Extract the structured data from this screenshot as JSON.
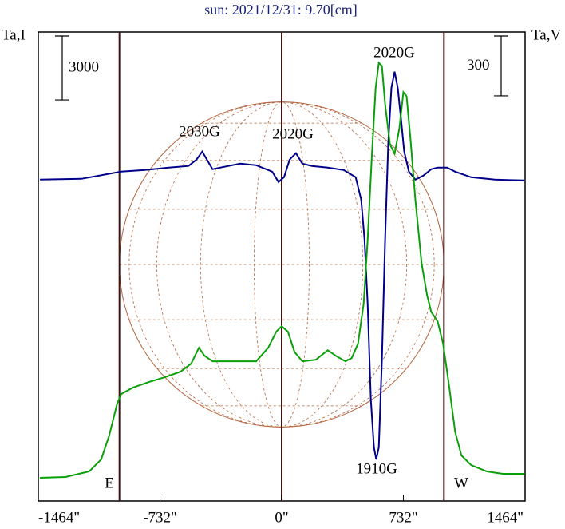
{
  "chart_data": {
    "type": "line",
    "title": "sun: 2021/12/31: 9.70[cm]",
    "y_label": "Ta,I",
    "y2_label": "Ta,V",
    "xlim": [
      -1464,
      1464
    ],
    "xticks": [
      {
        "value": -1464,
        "label": "-1464\""
      },
      {
        "value": -732,
        "label": "-732\""
      },
      {
        "value": 0,
        "label": "0\""
      },
      {
        "value": 732,
        "label": "732\""
      },
      {
        "value": 1464,
        "label": "1464\""
      }
    ],
    "ylim": [
      0,
      22000
    ],
    "y2lim": [
      0,
      2350
    ],
    "y_scale": 3000,
    "y2_scale": 300,
    "vlines": [
      -976,
      0,
      976
    ],
    "annotations": [
      "2030G",
      "2020G",
      "2020G",
      "1910G",
      "E",
      "W"
    ],
    "series": [
      {
        "color": "#00008b",
        "axis": "y",
        "x": [
          -1454,
          -1206,
          -966,
          -823,
          -679,
          -560,
          -512,
          -478,
          -450,
          -416,
          -368,
          -249,
          -153,
          -57,
          -19,
          14,
          48,
          86,
          124,
          182,
          277,
          373,
          445,
          478,
          498,
          517,
          536,
          555,
          569,
          584,
          603,
          622,
          641,
          660,
          679,
          698,
          718,
          737,
          765,
          804,
          852,
          899,
          938,
          995,
          1043,
          1139,
          1282,
          1459
        ],
        "values": [
          15075,
          15113,
          15450,
          15525,
          15638,
          15713,
          16013,
          16388,
          16013,
          15563,
          15638,
          15825,
          15750,
          15450,
          14963,
          15188,
          16013,
          16313,
          15825,
          15713,
          15638,
          15525,
          15188,
          14138,
          12263,
          9263,
          4763,
          2513,
          1950,
          2513,
          6638,
          12263,
          16763,
          19388,
          20138,
          19388,
          17888,
          16388,
          15450,
          15075,
          15263,
          15563,
          15638,
          15638,
          15450,
          15188,
          15075,
          15038
        ]
      },
      {
        "color": "#0aa00a",
        "axis": "y2",
        "x": [
          -1454,
          -1301,
          -1158,
          -1086,
          -1038,
          -990,
          -966,
          -895,
          -799,
          -703,
          -608,
          -545,
          -498,
          -464,
          -416,
          -297,
          -153,
          -81,
          -33,
          0,
          38,
          77,
          124,
          206,
          277,
          325,
          383,
          421,
          459,
          493,
          517,
          541,
          565,
          584,
          603,
          622,
          651,
          679,
          708,
          732,
          751,
          775,
          804,
          842,
          875,
          899,
          938,
          971,
          1005,
          1043,
          1081,
          1139,
          1234,
          1330,
          1459
        ],
        "values": [
          116,
          120,
          148,
          208,
          328,
          488,
          536,
          568,
          596,
          620,
          648,
          688,
          768,
          728,
          700,
          700,
          700,
          768,
          848,
          876,
          848,
          748,
          700,
          708,
          756,
          728,
          700,
          716,
          788,
          988,
          1308,
          1708,
          2068,
          2196,
          2180,
          1988,
          1788,
          1740,
          1868,
          2048,
          2028,
          1808,
          1508,
          1188,
          1028,
          948,
          900,
          788,
          588,
          348,
          228,
          180,
          148,
          136,
          136
        ]
      }
    ]
  }
}
